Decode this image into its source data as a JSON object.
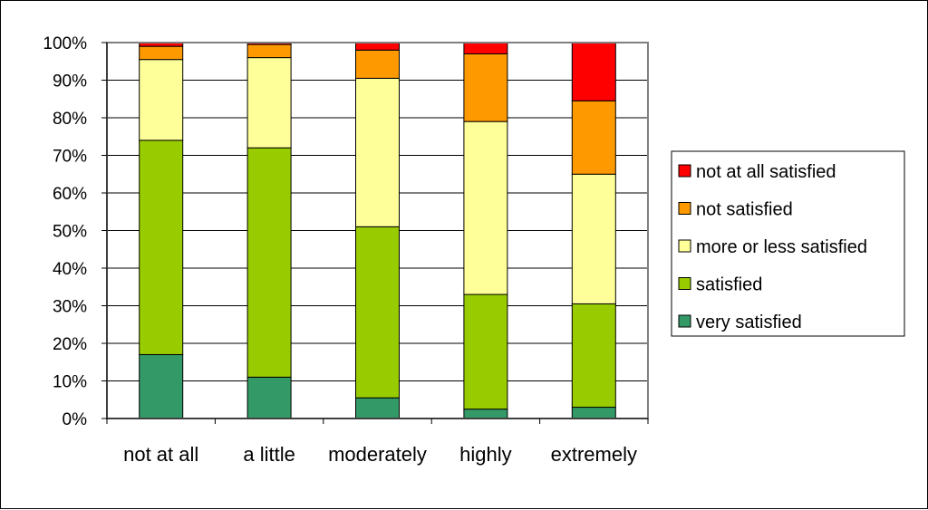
{
  "chart_data": {
    "type": "bar",
    "stacked": true,
    "normalized": true,
    "title": "",
    "xlabel": "",
    "ylabel": "",
    "ylim": [
      0,
      100
    ],
    "yticks": [
      "0%",
      "10%",
      "20%",
      "30%",
      "40%",
      "50%",
      "60%",
      "70%",
      "80%",
      "90%",
      "100%"
    ],
    "grid": true,
    "legend_position": "right",
    "categories": [
      "not at all",
      "a little",
      "moderately",
      "highly",
      "extremely"
    ],
    "series": [
      {
        "name": "very satisfied",
        "color": "#339966",
        "values": [
          17,
          11,
          5.5,
          2.5,
          3
        ]
      },
      {
        "name": "satisfied",
        "color": "#99cc00",
        "values": [
          57,
          61,
          45.5,
          30.5,
          27.5
        ]
      },
      {
        "name": "more or less satisfied",
        "color": "#ffff99",
        "values": [
          21.5,
          24,
          39.5,
          46,
          34.5
        ]
      },
      {
        "name": "not satisfied",
        "color": "#ff9900",
        "values": [
          3.5,
          3.5,
          7.5,
          18,
          19.5
        ]
      },
      {
        "name": "not at all satisfied",
        "color": "#ff0000",
        "values": [
          1,
          0.5,
          2,
          3,
          15.5
        ]
      }
    ]
  },
  "legend_order": [
    "not at all satisfied",
    "not satisfied",
    "more or less satisfied",
    "satisfied",
    "very satisfied"
  ]
}
